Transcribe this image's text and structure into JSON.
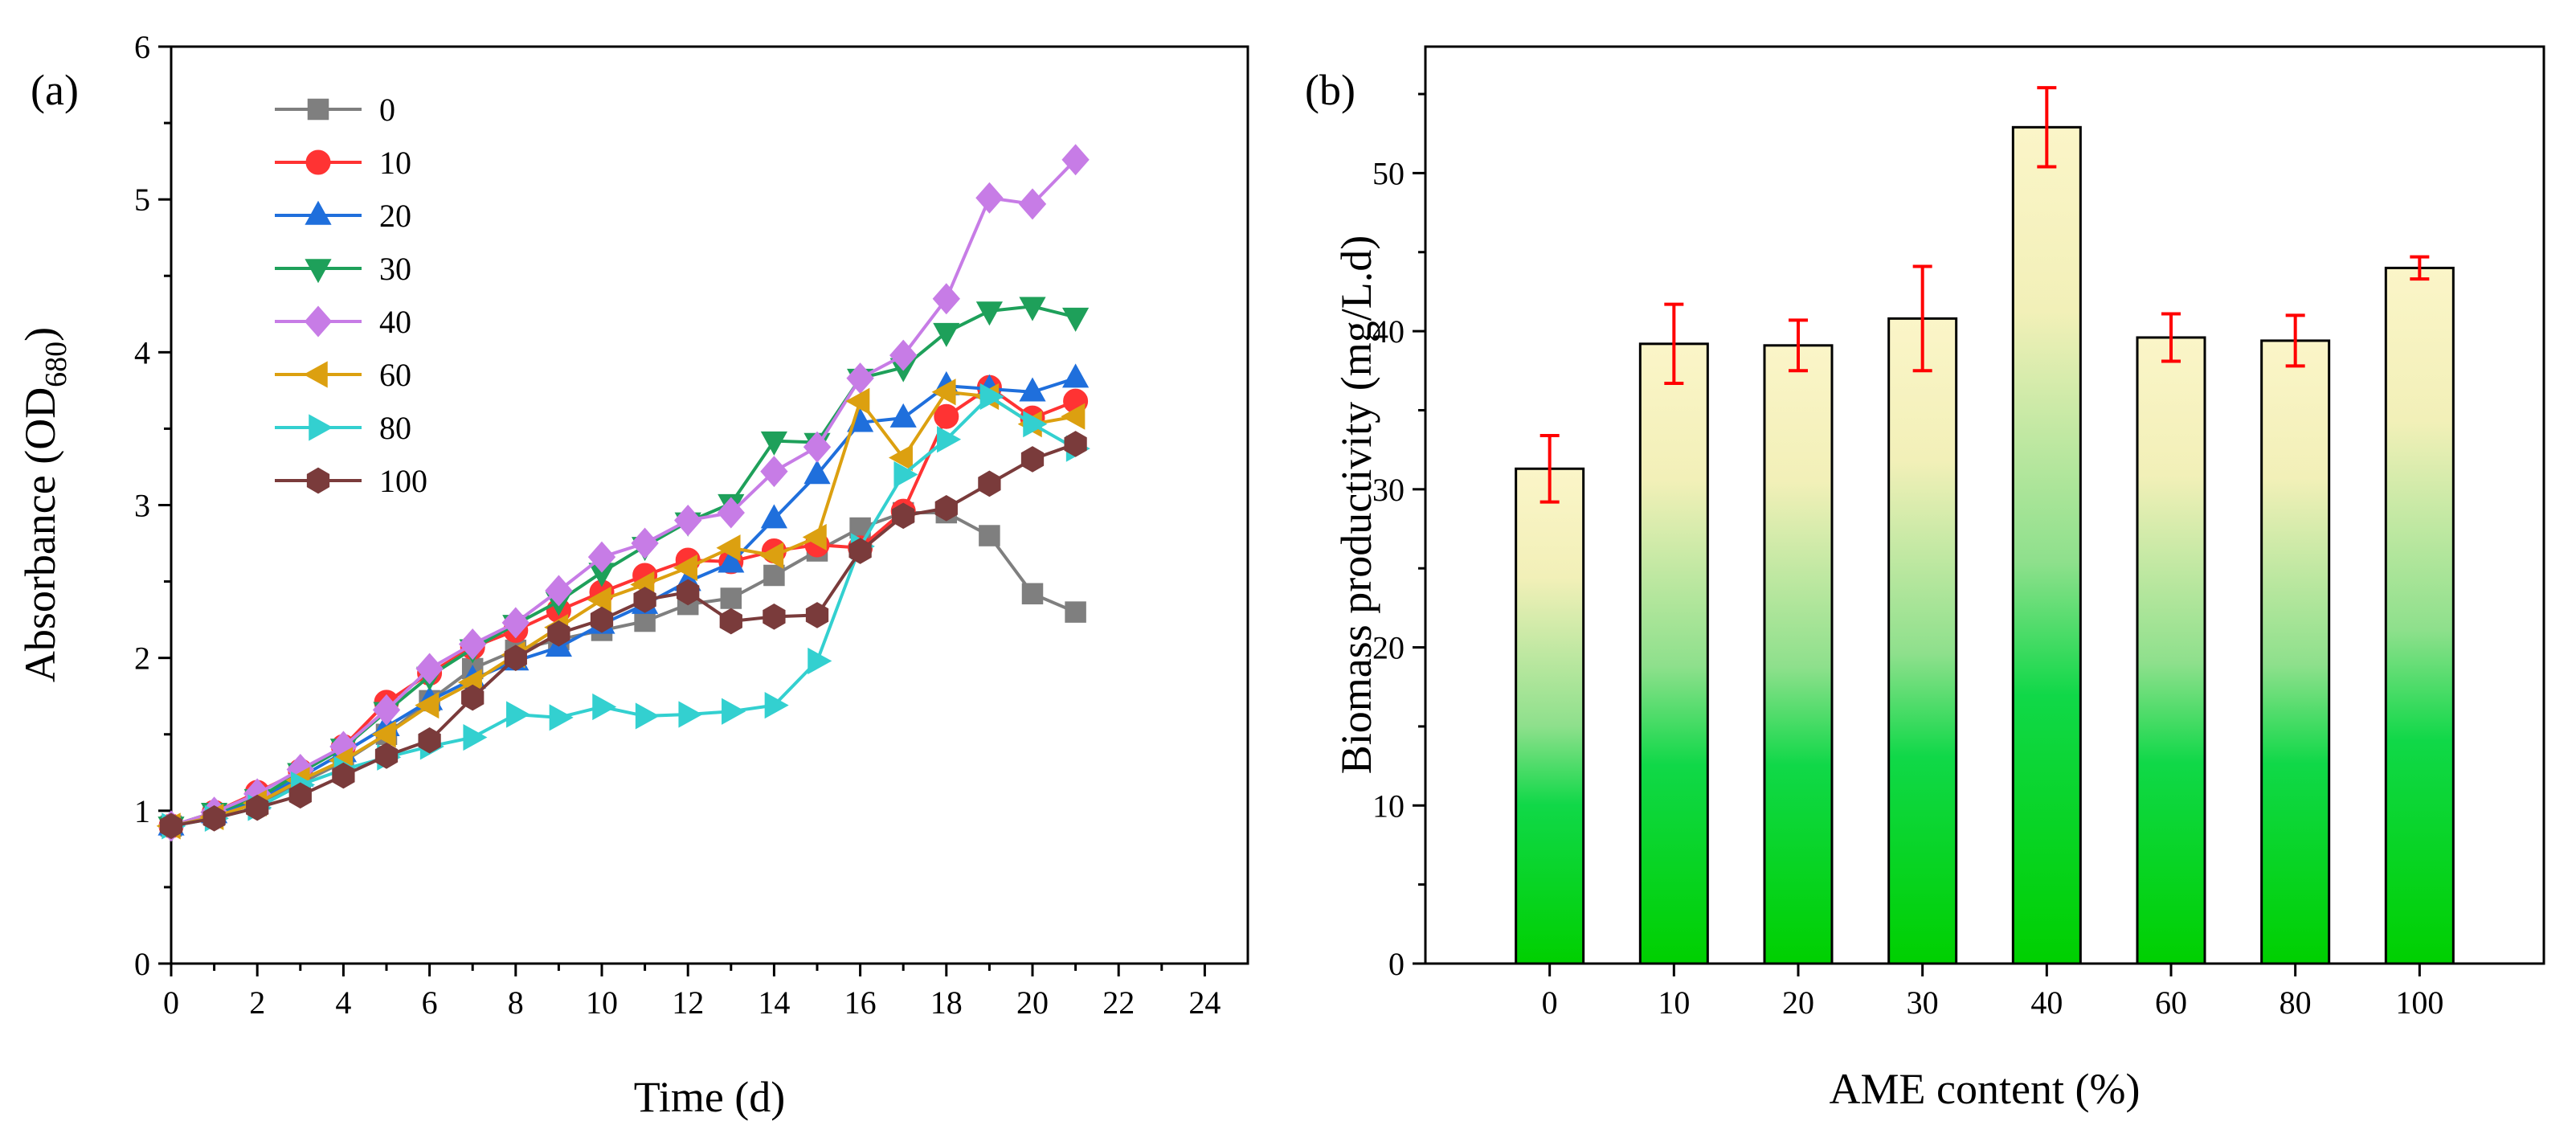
{
  "chart_data": [
    {
      "panel": "(a)",
      "type": "line",
      "xlabel": "Time (d)",
      "ylabel_main": "Absorbance (OD",
      "ylabel_sub": "680",
      "ylabel_end": ")",
      "xlim": [
        0,
        25
      ],
      "ylim": [
        0,
        6
      ],
      "xticks": [
        "0",
        "2",
        "4",
        "6",
        "8",
        "10",
        "12",
        "14",
        "16",
        "18",
        "20",
        "22",
        "24"
      ],
      "yticks": [
        "0",
        "1",
        "2",
        "3",
        "4",
        "5",
        "6"
      ],
      "x": [
        0,
        1,
        2,
        3,
        4,
        5,
        6,
        7,
        8,
        9,
        10,
        11,
        12,
        13,
        14,
        15,
        16,
        17,
        18,
        19,
        20,
        21
      ],
      "series": [
        {
          "name": "0",
          "color": "#7f7f7f",
          "marker": "square",
          "values": [
            0.9,
            0.97,
            1.05,
            1.18,
            1.32,
            1.5,
            1.72,
            1.93,
            2.05,
            2.12,
            2.18,
            2.24,
            2.35,
            2.39,
            2.54,
            2.7,
            2.85,
            2.95,
            2.95,
            2.8,
            2.42,
            2.3
          ]
        },
        {
          "name": "10",
          "color": "#ff3333",
          "marker": "circle",
          "values": [
            0.9,
            0.99,
            1.12,
            1.26,
            1.42,
            1.71,
            1.9,
            2.07,
            2.18,
            2.31,
            2.43,
            2.54,
            2.64,
            2.63,
            2.7,
            2.74,
            2.72,
            2.96,
            3.58,
            3.77,
            3.57,
            3.68
          ]
        },
        {
          "name": "20",
          "color": "#1f6fdc",
          "marker": "triangle-up",
          "values": [
            0.9,
            0.98,
            1.07,
            1.22,
            1.38,
            1.55,
            1.72,
            1.86,
            1.98,
            2.07,
            2.22,
            2.35,
            2.5,
            2.62,
            2.91,
            3.2,
            3.54,
            3.57,
            3.78,
            3.76,
            3.74,
            3.83
          ]
        },
        {
          "name": "30",
          "color": "#1ea05a",
          "marker": "triangle-down",
          "values": [
            0.9,
            0.99,
            1.08,
            1.25,
            1.41,
            1.65,
            1.88,
            2.06,
            2.22,
            2.37,
            2.56,
            2.73,
            2.89,
            3.01,
            3.42,
            3.41,
            3.83,
            3.9,
            4.13,
            4.27,
            4.3,
            4.23
          ]
        },
        {
          "name": "40",
          "color": "#c77ce6",
          "marker": "diamond",
          "values": [
            0.9,
            0.99,
            1.11,
            1.27,
            1.42,
            1.66,
            1.93,
            2.09,
            2.23,
            2.44,
            2.66,
            2.75,
            2.9,
            2.95,
            3.22,
            3.38,
            3.83,
            3.98,
            4.35,
            5.01,
            4.97,
            5.26
          ]
        },
        {
          "name": "60",
          "color": "#dca010",
          "marker": "triangle-left",
          "values": [
            0.9,
            0.96,
            1.05,
            1.2,
            1.33,
            1.5,
            1.69,
            1.84,
            2.02,
            2.2,
            2.38,
            2.48,
            2.59,
            2.72,
            2.67,
            2.79,
            3.68,
            3.31,
            3.74,
            3.71,
            3.53,
            3.58
          ]
        },
        {
          "name": "80",
          "color": "#33d0d0",
          "marker": "triangle-right",
          "values": [
            0.9,
            0.95,
            1.02,
            1.17,
            1.27,
            1.35,
            1.42,
            1.48,
            1.63,
            1.61,
            1.68,
            1.62,
            1.63,
            1.65,
            1.69,
            1.98,
            2.73,
            3.2,
            3.43,
            3.71,
            3.53,
            3.37
          ]
        },
        {
          "name": "100",
          "color": "#7a3b3b",
          "marker": "hexagon",
          "values": [
            0.9,
            0.95,
            1.02,
            1.1,
            1.23,
            1.36,
            1.46,
            1.74,
            2.0,
            2.16,
            2.25,
            2.38,
            2.43,
            2.24,
            2.27,
            2.28,
            2.7,
            2.93,
            2.98,
            3.14,
            3.3,
            3.4
          ]
        }
      ]
    },
    {
      "panel": "(b)",
      "type": "bar",
      "xlabel": "AME content (%)",
      "ylabel": "Biomass productivity (mg/L.d)",
      "categories": [
        "0",
        "10",
        "20",
        "30",
        "40",
        "60",
        "80",
        "100"
      ],
      "values": [
        31.3,
        39.2,
        39.1,
        40.8,
        52.9,
        39.6,
        39.4,
        44.0
      ],
      "errors": [
        2.1,
        2.5,
        1.6,
        3.3,
        2.5,
        1.5,
        1.6,
        0.7
      ],
      "ylim": [
        0,
        58
      ],
      "yticks": [
        "0",
        "10",
        "20",
        "30",
        "40",
        "50"
      ],
      "error_color": "#ff0000",
      "bar_gradient_top": "#fbf5c8",
      "bar_gradient_mid": "#8ee08c",
      "bar_gradient_bottom": "#00d000"
    }
  ]
}
